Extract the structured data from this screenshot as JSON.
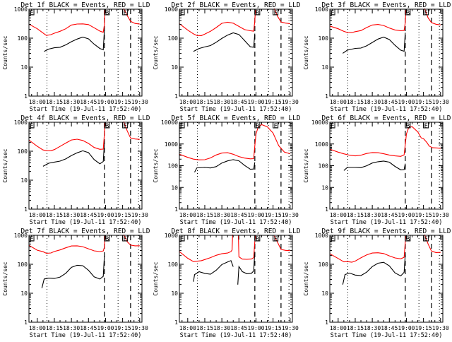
{
  "colors": {
    "events": "#000000",
    "lld": "#ff0000",
    "axis": "#000000"
  },
  "common": {
    "xlabel": "Start Time (19-Jul-11 17:52:40)",
    "ylabel": "Counts/sec",
    "x_start_min": -7.33,
    "x_end_min": 92,
    "x_ticks": [
      {
        "t": 0,
        "label": "18:00"
      },
      {
        "t": 15,
        "label": "18:15"
      },
      {
        "t": 30,
        "label": "18:30"
      },
      {
        "t": 45,
        "label": "18:45"
      },
      {
        "t": 60,
        "label": "19:00"
      },
      {
        "t": 75,
        "label": "19:15"
      },
      {
        "t": 90,
        "label": "19:30"
      }
    ],
    "dotted_lines_min": [
      8.5,
      71,
      89
    ],
    "dashed_lines_min": [
      59,
      82
    ],
    "markers": [
      {
        "label": "E",
        "t": -7.3
      },
      {
        "label": "B",
        "t": 59
      },
      {
        "label": "E",
        "t": 75
      }
    ]
  },
  "chart_data": [
    {
      "type": "line",
      "title": "Det 1f BLACK = Events, RED = LLD",
      "ylim": [
        1,
        1000
      ],
      "yticks": [
        "1",
        "10",
        "100",
        "1000"
      ],
      "series": [
        {
          "name": "Events",
          "color": "#000000",
          "x": [
            6,
            10,
            15,
            20,
            25,
            30,
            35,
            40,
            45,
            50,
            55,
            58,
            59
          ],
          "y": [
            35,
            38,
            42,
            48,
            65,
            85,
            95,
            100,
            85,
            60,
            48,
            45,
            200
          ]
        },
        {
          "name": "LLD",
          "color": "#ff0000",
          "x": [
            -7.3,
            0,
            5,
            8,
            12,
            15,
            20,
            25,
            30,
            35,
            40,
            45,
            50,
            55,
            58,
            59,
            59.5
          ],
          "y": [
            290,
            200,
            150,
            130,
            140,
            150,
            165,
            200,
            280,
            320,
            330,
            300,
            220,
            165,
            155,
            300,
            1000
          ]
        },
        {
          "name": "LLD-tail",
          "color": "#ff0000",
          "x": [
            76,
            79,
            82,
            86,
            90
          ],
          "y": [
            1000,
            600,
            400,
            340,
            310
          ]
        }
      ]
    },
    {
      "type": "line",
      "title": "Det 2f BLACK = Events, RED = LLD",
      "ylim": [
        1,
        1000
      ],
      "yticks": [
        "1",
        "10",
        "100",
        "1000"
      ],
      "series": [
        {
          "name": "Events",
          "color": "#000000",
          "x": [
            5,
            10,
            15,
            20,
            25,
            30,
            35,
            40,
            45,
            50,
            55,
            58,
            59
          ],
          "y": [
            35,
            40,
            45,
            55,
            80,
            110,
            130,
            140,
            120,
            80,
            55,
            55,
            150
          ]
        },
        {
          "name": "LLD",
          "color": "#ff0000",
          "x": [
            -7.3,
            0,
            5,
            8,
            12,
            15,
            20,
            25,
            30,
            35,
            40,
            45,
            50,
            55,
            58,
            59,
            59.5
          ],
          "y": [
            300,
            180,
            140,
            130,
            130,
            140,
            165,
            220,
            320,
            370,
            350,
            260,
            190,
            170,
            170,
            400,
            1000
          ]
        },
        {
          "name": "LLD-tail",
          "color": "#ff0000",
          "x": [
            76,
            79,
            82,
            86,
            90
          ],
          "y": [
            1000,
            560,
            380,
            350,
            320
          ]
        }
      ]
    },
    {
      "type": "line",
      "title": "Det 3f BLACK = Events, RED = LLD",
      "ylim": [
        1,
        1000
      ],
      "yticks": [
        "1",
        "10",
        "100",
        "1000"
      ],
      "series": [
        {
          "name": "Events",
          "color": "#000000",
          "x": [
            4,
            8,
            15,
            20,
            25,
            30,
            35,
            40,
            45,
            50,
            55,
            58,
            59
          ],
          "y": [
            30,
            35,
            40,
            45,
            60,
            80,
            95,
            100,
            80,
            55,
            42,
            40,
            160
          ]
        },
        {
          "name": "LLD",
          "color": "#ff0000",
          "x": [
            -7.3,
            0,
            5,
            8,
            12,
            15,
            20,
            25,
            30,
            35,
            40,
            45,
            50,
            55,
            58,
            59,
            59.5
          ],
          "y": [
            250,
            200,
            170,
            165,
            165,
            170,
            175,
            220,
            280,
            310,
            290,
            230,
            185,
            170,
            180,
            350,
            1000
          ]
        },
        {
          "name": "LLD-tail",
          "color": "#ff0000",
          "x": [
            76,
            79,
            82,
            86,
            90
          ],
          "y": [
            1000,
            500,
            360,
            320,
            290
          ]
        }
      ]
    },
    {
      "type": "line",
      "title": "Det 4f BLACK = Events, RED = LLD",
      "ylim": [
        1,
        1000
      ],
      "yticks": [
        "1",
        "10",
        "100",
        "1000"
      ],
      "series": [
        {
          "name": "Events",
          "color": "#000000",
          "x": [
            5,
            10,
            15,
            20,
            25,
            30,
            35,
            40,
            45,
            50,
            55,
            58,
            59
          ],
          "y": [
            30,
            35,
            38,
            45,
            60,
            80,
            90,
            95,
            80,
            50,
            40,
            50,
            200
          ]
        },
        {
          "name": "LLD",
          "color": "#ff0000",
          "x": [
            -7.3,
            0,
            5,
            8,
            12,
            15,
            20,
            25,
            30,
            35,
            40,
            45,
            50,
            55,
            58,
            59,
            59.5
          ],
          "y": [
            230,
            140,
            110,
            110,
            110,
            115,
            140,
            180,
            240,
            270,
            250,
            190,
            130,
            110,
            115,
            400,
            1000
          ]
        },
        {
          "name": "LLD-tail",
          "color": "#ff0000",
          "x": [
            76,
            79,
            82,
            86,
            90
          ],
          "y": [
            1000,
            500,
            300,
            280,
            260
          ]
        }
      ]
    },
    {
      "type": "line",
      "title": "Det 5f BLACK = Events, RED = LLD",
      "ylim": [
        1,
        10000
      ],
      "yticks": [
        "1",
        "10",
        "100",
        "1000",
        "10000"
      ],
      "series": [
        {
          "name": "Events",
          "color": "#000000",
          "x": [
            6,
            8,
            15,
            20,
            25,
            30,
            35,
            40,
            45,
            50,
            55,
            58,
            59
          ],
          "y": [
            50,
            72,
            75,
            78,
            100,
            150,
            170,
            175,
            150,
            100,
            75,
            80,
            150
          ]
        },
        {
          "name": "LLD",
          "color": "#ff0000",
          "x": [
            -7.3,
            0,
            5,
            10,
            15,
            20,
            25,
            30,
            35,
            40,
            45,
            50,
            55,
            58,
            59,
            60,
            62,
            65,
            70,
            75,
            80,
            85,
            90
          ],
          "y": [
            320,
            230,
            200,
            195,
            200,
            230,
            300,
            360,
            390,
            350,
            280,
            230,
            200,
            200,
            800,
            3000,
            6500,
            8000,
            6000,
            3000,
            800,
            430,
            380
          ]
        }
      ]
    },
    {
      "type": "line",
      "title": "Det 6f BLACK = Events, RED = LLD",
      "ylim": [
        1,
        10000
      ],
      "yticks": [
        "1",
        "10",
        "100",
        "1000",
        "10000"
      ],
      "series": [
        {
          "name": "Events",
          "color": "#000000",
          "x": [
            5,
            8,
            15,
            20,
            25,
            30,
            35,
            40,
            45,
            50,
            55,
            58,
            59
          ],
          "y": [
            60,
            75,
            75,
            80,
            110,
            150,
            155,
            150,
            130,
            90,
            70,
            75,
            130
          ]
        },
        {
          "name": "LLD",
          "color": "#ff0000",
          "x": [
            -7.3,
            0,
            5,
            10,
            15,
            20,
            25,
            30,
            35,
            40,
            45,
            50,
            55,
            58,
            59,
            60,
            62,
            65,
            70,
            73,
            75,
            78,
            80,
            83,
            86,
            90
          ],
          "y": [
            550,
            400,
            350,
            320,
            300,
            310,
            350,
            380,
            390,
            370,
            330,
            290,
            260,
            300,
            900,
            3000,
            6000,
            6500,
            3500,
            1800,
            1700,
            1200,
            850,
            700,
            650,
            600
          ]
        }
      ]
    },
    {
      "type": "line",
      "title": "Det 7f BLACK = Events, RED = LLD",
      "ylim": [
        1,
        1000
      ],
      "yticks": [
        "1",
        "10",
        "100",
        "1000"
      ],
      "series": [
        {
          "name": "Events",
          "color": "#000000",
          "x": [
            4,
            6,
            10,
            15,
            20,
            25,
            30,
            35,
            40,
            45,
            50,
            55,
            58,
            59
          ],
          "y": [
            15,
            28,
            30,
            32,
            40,
            55,
            80,
            85,
            80,
            60,
            40,
            35,
            40,
            180
          ]
        },
        {
          "name": "LLD",
          "color": "#ff0000",
          "x": [
            -7.3,
            0,
            5,
            8,
            12,
            15,
            20,
            25,
            30,
            35,
            40,
            45,
            50,
            55,
            58,
            59,
            59.5
          ],
          "y": [
            430,
            290,
            270,
            250,
            260,
            280,
            300,
            350,
            420,
            450,
            430,
            350,
            280,
            260,
            280,
            400,
            1000
          ]
        },
        {
          "name": "LLD-tail",
          "color": "#ff0000",
          "x": [
            76,
            79,
            82,
            86,
            90
          ],
          "y": [
            1000,
            600,
            480,
            460,
            440
          ]
        }
      ]
    },
    {
      "type": "line",
      "title": "Det 8f BLACK = Events, RED = LLD",
      "ylim": [
        1,
        1000
      ],
      "yticks": [
        "1",
        "10",
        "100",
        "1000"
      ],
      "series": [
        {
          "name": "Events",
          "color": "#000000",
          "x": [
            5,
            6,
            10,
            15,
            20,
            25,
            30,
            35,
            38,
            40
          ],
          "y": [
            25,
            40,
            50,
            48,
            50,
            70,
            100,
            110,
            120,
            80
          ]
        },
        {
          "name": "Events-2",
          "color": "#000000",
          "x": [
            44,
            45,
            48,
            52,
            56,
            58,
            59
          ],
          "y": [
            18,
            75,
            55,
            52,
            55,
            60,
            250
          ]
        },
        {
          "name": "LLD",
          "color": "#ff0000",
          "x": [
            -7.3,
            0,
            5,
            8,
            12,
            15,
            20,
            25,
            30,
            35,
            38,
            39,
            39.5
          ],
          "y": [
            260,
            160,
            130,
            135,
            135,
            140,
            160,
            200,
            240,
            260,
            280,
            300,
            1000
          ]
        },
        {
          "name": "LLD-2",
          "color": "#ff0000",
          "x": [
            44.5,
            45,
            48,
            52,
            56,
            58,
            59,
            59.5
          ],
          "y": [
            1000,
            190,
            160,
            150,
            145,
            160,
            600,
            1000
          ]
        },
        {
          "name": "LLD-tail",
          "color": "#ff0000",
          "x": [
            76,
            79,
            82,
            86,
            90
          ],
          "y": [
            1000,
            600,
            330,
            290,
            280
          ]
        }
      ]
    },
    {
      "type": "line",
      "title": "Det 9f BLACK = Events, RED = LLD",
      "ylim": [
        1,
        1000
      ],
      "yticks": [
        "1",
        "10",
        "100",
        "1000"
      ],
      "series": [
        {
          "name": "Events",
          "color": "#000000",
          "x": [
            4,
            6,
            10,
            15,
            20,
            25,
            30,
            35,
            40,
            45,
            50,
            55,
            58,
            59
          ],
          "y": [
            20,
            40,
            45,
            42,
            45,
            60,
            85,
            100,
            105,
            85,
            55,
            45,
            55,
            200
          ]
        },
        {
          "name": "LLD",
          "color": "#ff0000",
          "x": [
            -7.3,
            0,
            5,
            8,
            12,
            15,
            20,
            25,
            30,
            35,
            40,
            45,
            50,
            55,
            58,
            59,
            59.5
          ],
          "y": [
            220,
            150,
            120,
            130,
            125,
            130,
            160,
            200,
            240,
            260,
            250,
            200,
            160,
            145,
            170,
            600,
            1000
          ]
        },
        {
          "name": "LLD-tail",
          "color": "#ff0000",
          "x": [
            76,
            79,
            82,
            86,
            90
          ],
          "y": [
            1000,
            500,
            300,
            270,
            260
          ]
        }
      ]
    }
  ]
}
